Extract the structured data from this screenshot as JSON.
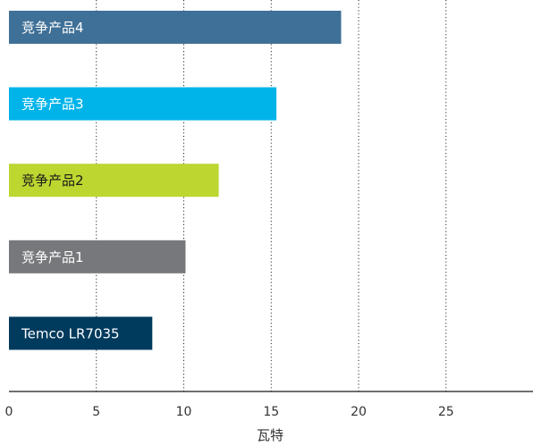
{
  "chart_data": {
    "type": "bar",
    "orientation": "horizontal",
    "xlabel": "瓦特",
    "xlim": [
      0,
      30
    ],
    "x_ticks": [
      0,
      5,
      10,
      15,
      20,
      25
    ],
    "grid": "vertical dotted",
    "categories": [
      "竞争产品4",
      "竞争产品3",
      "竞争产品2",
      "竞争产品1",
      "Temco LR7035"
    ],
    "values": [
      19,
      15.3,
      12,
      10.1,
      8.2
    ],
    "colors": [
      "#3f7097",
      "#00b4ea",
      "#bdd630",
      "#77787b",
      "#003a5d"
    ],
    "label_colors": [
      "#ffffff",
      "#ffffff",
      "#1a1a1a",
      "#ffffff",
      "#ffffff"
    ]
  }
}
